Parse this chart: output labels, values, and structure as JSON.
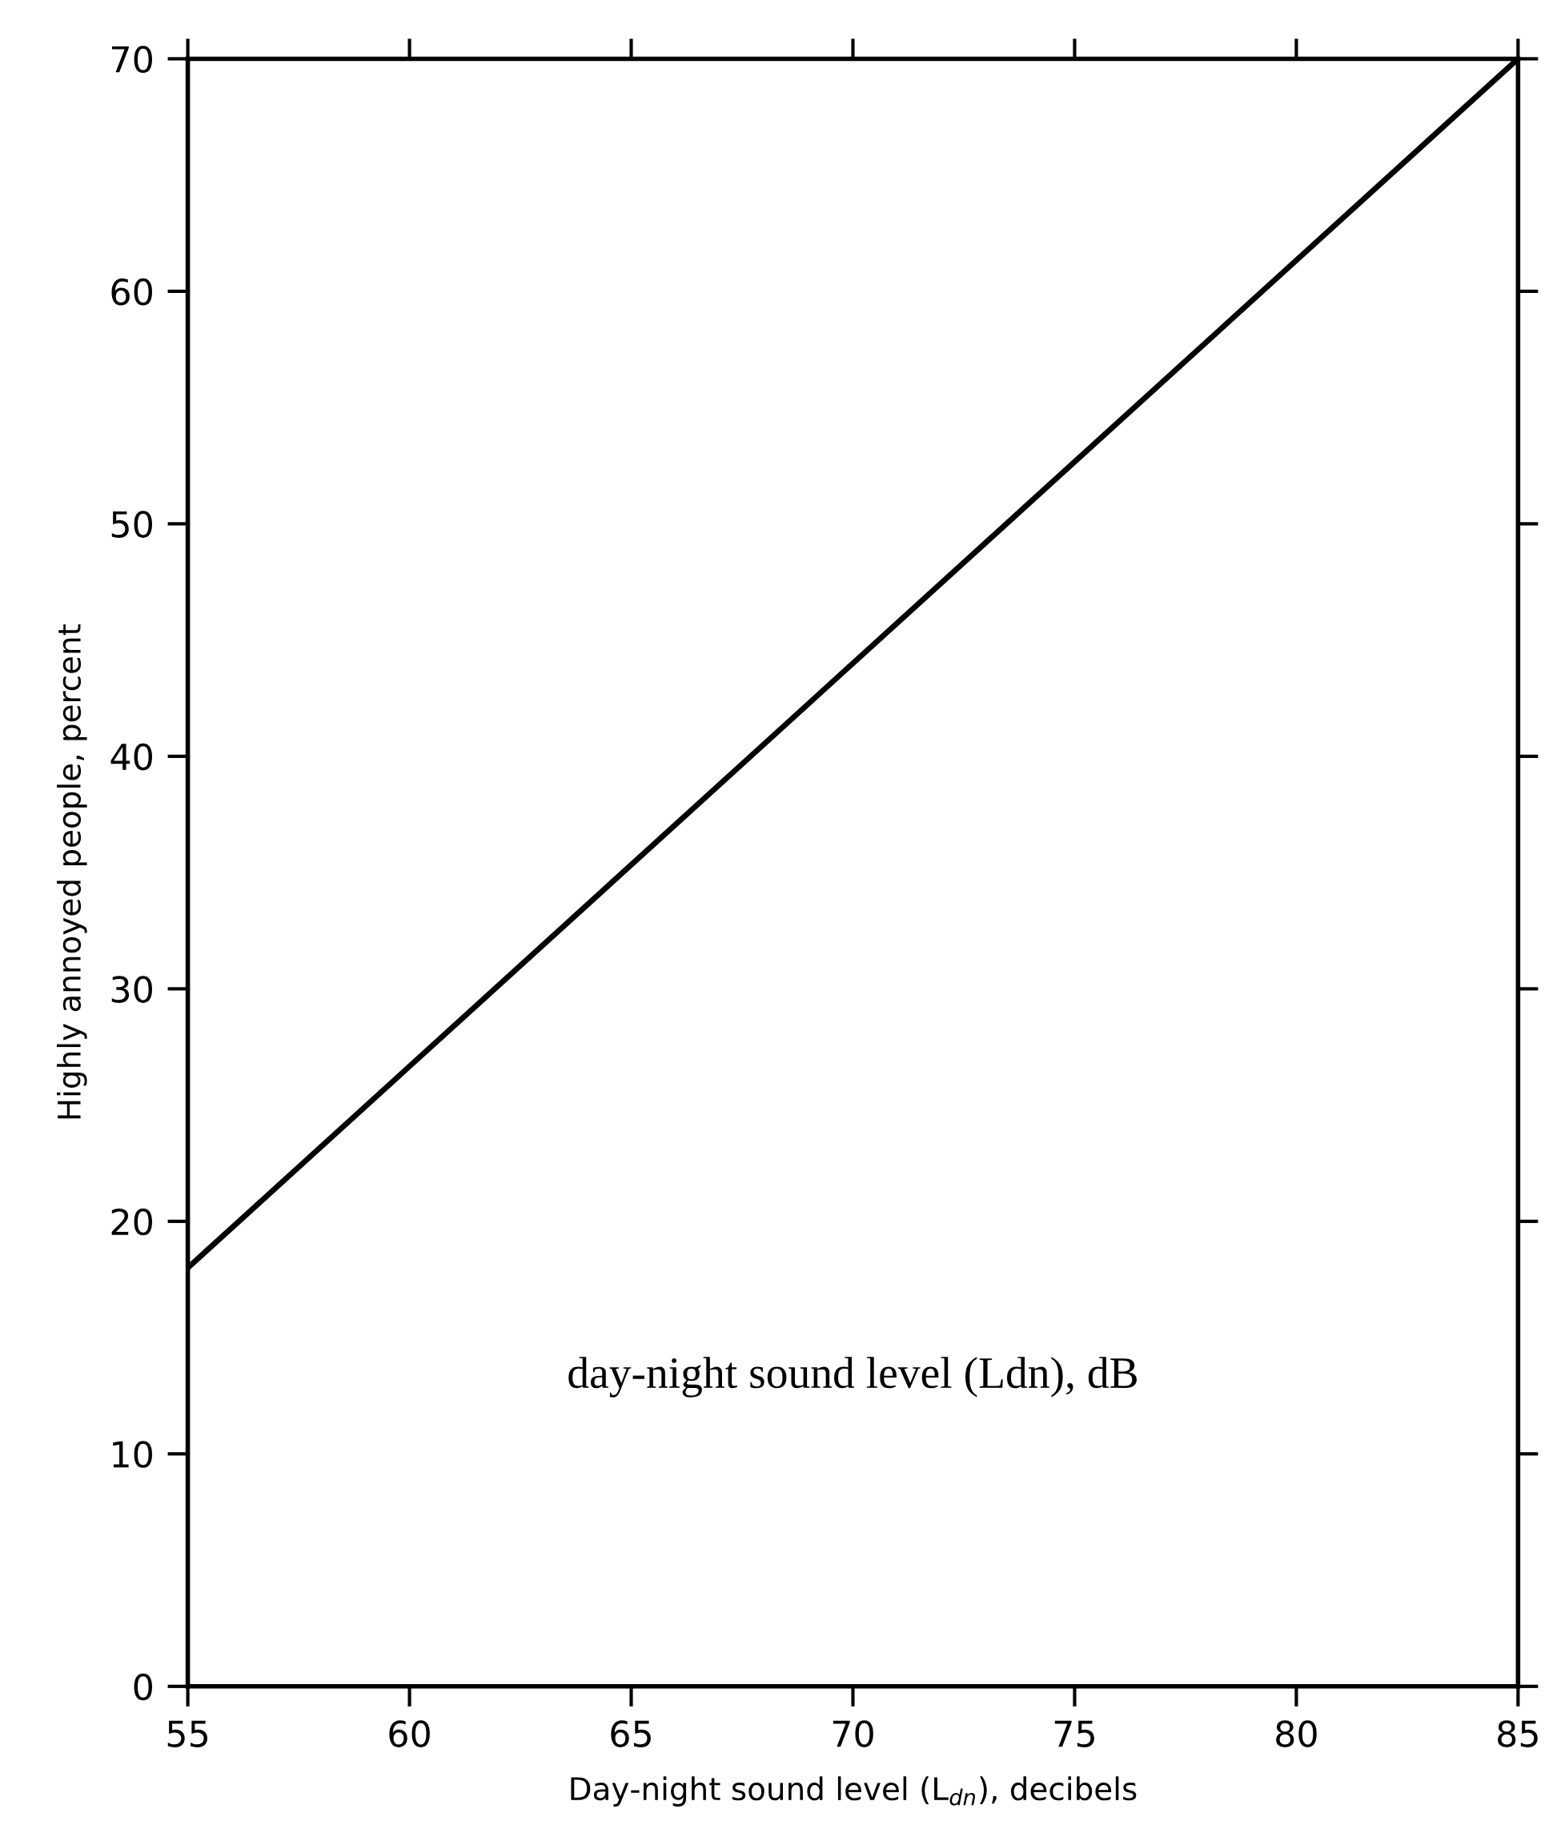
{
  "chart_data": {
    "type": "line",
    "xlabel": "Day-night sound level (L$_{dn}$), decibels",
    "ylabel": "Highly annoyed people, percent",
    "x": [
      55,
      85
    ],
    "series": [
      {
        "color": "#000000",
        "values": [
          18,
          70
        ]
      }
    ],
    "xlim": [
      55,
      85
    ],
    "xticks": [
      55,
      60,
      65,
      70,
      75,
      80,
      85
    ],
    "ylim": [
      0,
      70
    ],
    "yticks": [
      0,
      10,
      20,
      30,
      40,
      50,
      60,
      70
    ],
    "annotations": [
      "day-night sound level (Ldn), dB"
    ],
    "grid": false,
    "legend": false,
    "marker": "none",
    "line_style": "solid"
  }
}
